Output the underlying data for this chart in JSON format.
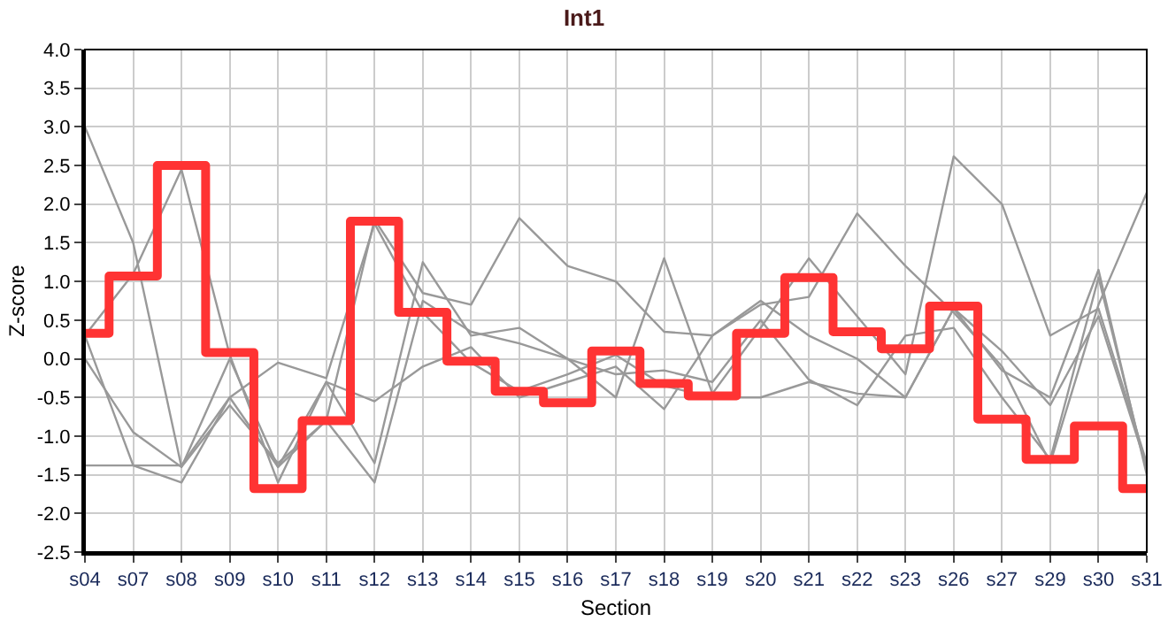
{
  "chart_data": {
    "type": "line",
    "title": "Int1",
    "xlabel": "Section",
    "ylabel": "Z-score",
    "categories": [
      "s04",
      "s07",
      "s08",
      "s09",
      "s10",
      "s11",
      "s12",
      "s13",
      "s14",
      "s15",
      "s16",
      "s17",
      "s18",
      "s19",
      "s20",
      "s21",
      "s22",
      "s23",
      "s26",
      "s27",
      "s29",
      "s30",
      "s31"
    ],
    "series": [
      {
        "color": "#999999",
        "values": [
          3.0,
          1.5,
          -1.4,
          0.0,
          -1.4,
          -0.8,
          1.8,
          0.85,
          0.7,
          1.82,
          1.2,
          1.0,
          0.35,
          0.3,
          0.7,
          0.8,
          1.88,
          1.2,
          0.6,
          -0.1,
          -1.35,
          0.7,
          2.15
        ]
      },
      {
        "color": "#999999",
        "values": [
          -1.38,
          -1.38,
          -1.38,
          -0.5,
          -1.4,
          -0.3,
          -1.35,
          1.25,
          0.3,
          0.4,
          0.0,
          -0.5,
          1.3,
          -0.45,
          0.4,
          1.3,
          0.55,
          -0.2,
          2.62,
          2.0,
          0.3,
          0.65,
          -1.35
        ]
      },
      {
        "color": "#999999",
        "values": [
          0.3,
          1.1,
          2.45,
          0.05,
          -1.6,
          -0.3,
          -0.55,
          -0.1,
          0.15,
          -0.5,
          -0.3,
          -0.1,
          -0.65,
          0.3,
          0.75,
          0.3,
          0.0,
          -0.5,
          0.65,
          -0.15,
          -0.5,
          1.15,
          -1.5
        ]
      },
      {
        "color": "#999999",
        "values": [
          0.0,
          -0.95,
          -1.4,
          -0.6,
          -1.35,
          -0.8,
          -1.6,
          0.75,
          0.35,
          0.2,
          0.0,
          -0.2,
          -0.15,
          -0.3,
          0.5,
          -0.27,
          -0.6,
          0.3,
          0.4,
          -0.5,
          -1.3,
          1.05,
          -1.45
        ]
      },
      {
        "color": "#999999",
        "values": [
          0.3,
          -1.38,
          -1.6,
          -0.5,
          -0.05,
          -0.25,
          1.75,
          0.6,
          -0.05,
          -0.42,
          -0.2,
          0.05,
          -0.35,
          -0.5,
          -0.5,
          -0.3,
          -0.45,
          -0.5,
          0.65,
          0.1,
          -0.6,
          0.55,
          -1.4
        ]
      },
      {
        "type": "step",
        "color": "#ff3333",
        "values": [
          0.33,
          1.07,
          2.5,
          0.08,
          -1.68,
          -0.8,
          1.78,
          0.6,
          -0.03,
          -0.42,
          -0.57,
          0.1,
          -0.32,
          -0.48,
          0.33,
          1.05,
          0.35,
          0.13,
          0.68,
          -0.78,
          -1.3,
          -0.87,
          -1.68
        ]
      }
    ],
    "ylim": [
      -2.5,
      4.0
    ],
    "yticks": [
      {
        "value": -2.5,
        "label": "-2.5"
      },
      {
        "value": -2,
        "label": "-2.0"
      },
      {
        "value": -1.5,
        "label": "-1.5"
      },
      {
        "value": -1,
        "label": "-1.0"
      },
      {
        "value": -0.5,
        "label": "-0.5"
      },
      {
        "value": 0,
        "label": "0.0"
      },
      {
        "value": 0.5,
        "label": "0.5"
      },
      {
        "value": 1,
        "label": "1.0"
      },
      {
        "value": 1.5,
        "label": "1.5"
      },
      {
        "value": 2,
        "label": "2.0"
      },
      {
        "value": 2.5,
        "label": "2.5"
      },
      {
        "value": 3,
        "label": "3.0"
      },
      {
        "value": 3.5,
        "label": "3.5"
      },
      {
        "value": 4,
        "label": "4.0"
      }
    ],
    "grid": true,
    "marker": "none",
    "line_style": "solid"
  }
}
